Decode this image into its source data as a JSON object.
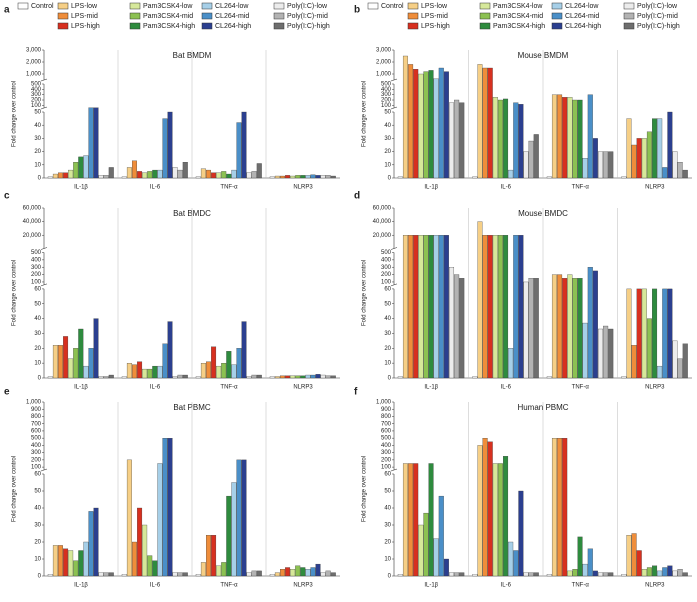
{
  "legend": [
    {
      "name": "Control",
      "color": "#ffffff"
    },
    {
      "name": "LPS-low",
      "color": "#f6cf86"
    },
    {
      "name": "LPS-mid",
      "color": "#ef8d3a"
    },
    {
      "name": "LPS-high",
      "color": "#d7301f"
    },
    {
      "name": "Pam3CSK4-low",
      "color": "#d6e89a"
    },
    {
      "name": "Pam3CSK4-mid",
      "color": "#8cc152"
    },
    {
      "name": "Pam3CSK4-high",
      "color": "#2e8b3e"
    },
    {
      "name": "CL264-low",
      "color": "#a6cfe8"
    },
    {
      "name": "CL264-mid",
      "color": "#4a8fc8"
    },
    {
      "name": "CL264-high",
      "color": "#2b3f8f"
    },
    {
      "name": "Poly(I:C)-low",
      "color": "#ececec"
    },
    {
      "name": "Poly(I:C)-mid",
      "color": "#b3b3b3"
    },
    {
      "name": "Poly(I:C)-high",
      "color": "#6e6e6e"
    }
  ],
  "chart_data": [
    {
      "type": "bar",
      "label": "a",
      "title": "Bat BMDM",
      "y_label": "Fold change over control",
      "legend": true,
      "categories": [
        "IL-1β",
        "IL-6",
        "TNF-α",
        "NLRP3"
      ],
      "segments": [
        {
          "ylim": [
            0,
            50
          ],
          "yticks": [
            0,
            10,
            20,
            30,
            40,
            50
          ]
        },
        {
          "ylim": [
            50,
            500
          ],
          "yticks": [
            100,
            200,
            300,
            400,
            500
          ]
        },
        {
          "ylim": [
            500,
            3000
          ],
          "yticks": [
            {
              "value": 1000,
              "label": "1,000"
            },
            {
              "value": 2000,
              "label": "2,000"
            },
            {
              "value": 3000,
              "label": "3,000"
            }
          ]
        }
      ],
      "values": [
        [
          1,
          3,
          4,
          4,
          6,
          12,
          16,
          17,
          55,
          55,
          2,
          2,
          8
        ],
        [
          1,
          8,
          13,
          5,
          4,
          5,
          6,
          6,
          45,
          50,
          8,
          6,
          12
        ],
        [
          1,
          7,
          6,
          4,
          4,
          5,
          3,
          6,
          42,
          50,
          4,
          5,
          11
        ],
        [
          1,
          1.5,
          1.5,
          2,
          1.5,
          2,
          2,
          2,
          2.5,
          2,
          2,
          2,
          1.5
        ]
      ]
    },
    {
      "type": "bar",
      "label": "b",
      "title": "Mouse BMDM",
      "y_label": "Fold change over control",
      "legend": true,
      "categories": [
        "IL-1β",
        "IL-6",
        "TNF-α",
        "NLRP3"
      ],
      "segments": [
        {
          "ylim": [
            0,
            50
          ],
          "yticks": [
            0,
            10,
            20,
            30,
            40,
            50
          ]
        },
        {
          "ylim": [
            50,
            500
          ],
          "yticks": [
            100,
            200,
            300,
            400,
            500
          ]
        },
        {
          "ylim": [
            500,
            3000
          ],
          "yticks": [
            {
              "value": 1000,
              "label": "1,000"
            },
            {
              "value": 2000,
              "label": "2,000"
            },
            {
              "value": 3000,
              "label": "3,000"
            }
          ]
        }
      ],
      "values": [
        [
          1,
          2500,
          1800,
          1400,
          1000,
          1200,
          1300,
          600,
          1500,
          1200,
          150,
          200,
          150
        ],
        [
          1,
          1800,
          1500,
          1500,
          250,
          200,
          220,
          6,
          150,
          120,
          20,
          28,
          33
        ],
        [
          1,
          300,
          300,
          250,
          250,
          200,
          200,
          15,
          300,
          30,
          20,
          20,
          20
        ],
        [
          1,
          45,
          25,
          30,
          30,
          35,
          45,
          45,
          8,
          50,
          20,
          12,
          6
        ]
      ]
    },
    {
      "type": "bar",
      "label": "c",
      "title": "Bat BMDC",
      "y_label": "Fold change over control",
      "categories": [
        "IL-1β",
        "IL-6",
        "TNF-α",
        "NLRP3"
      ],
      "segments": [
        {
          "ylim": [
            0,
            60
          ],
          "yticks": [
            0,
            10,
            20,
            30,
            40,
            50,
            60
          ]
        },
        {
          "ylim": [
            60,
            500
          ],
          "yticks": [
            100,
            200,
            300,
            400,
            500
          ]
        },
        {
          "ylim": [
            500,
            60000
          ],
          "yticks": [
            {
              "value": 20000,
              "label": "20,000"
            },
            {
              "value": 40000,
              "label": "40,000"
            },
            {
              "value": 60000,
              "label": "60,000"
            }
          ]
        }
      ],
      "values": [
        [
          1,
          22,
          22,
          28,
          13,
          20,
          33,
          8,
          20,
          40,
          1,
          1,
          2
        ],
        [
          1,
          10,
          9,
          11,
          6,
          6,
          8,
          8,
          23,
          38,
          1,
          2,
          2
        ],
        [
          1,
          10,
          11,
          21,
          8,
          10,
          18,
          9,
          20,
          38,
          1,
          2,
          2
        ],
        [
          1,
          1,
          1.5,
          1.5,
          1.5,
          1.5,
          1.5,
          2,
          2,
          2.5,
          2,
          1.5,
          1.5
        ]
      ]
    },
    {
      "type": "bar",
      "label": "d",
      "title": "Mouse BMDC",
      "y_label": "Fold change over control",
      "categories": [
        "IL-1β",
        "IL-6",
        "TNF-α",
        "NLRP3"
      ],
      "segments": [
        {
          "ylim": [
            0,
            60
          ],
          "yticks": [
            0,
            10,
            20,
            30,
            40,
            50,
            60
          ]
        },
        {
          "ylim": [
            60,
            500
          ],
          "yticks": [
            100,
            200,
            300,
            400,
            500
          ]
        },
        {
          "ylim": [
            500,
            60000
          ],
          "yticks": [
            {
              "value": 20000,
              "label": "20,000"
            },
            {
              "value": 40000,
              "label": "40,000"
            },
            {
              "value": 60000,
              "label": "60,000"
            }
          ]
        }
      ],
      "values": [
        [
          1,
          20000,
          20000,
          20000,
          20000,
          20000,
          20000,
          20000,
          20000,
          20000,
          300,
          200,
          150
        ],
        [
          1,
          40000,
          20000,
          20000,
          20000,
          20000,
          20000,
          20,
          20000,
          20000,
          100,
          150,
          150
        ],
        [
          1,
          200,
          200,
          150,
          200,
          150,
          150,
          37,
          300,
          250,
          33,
          35,
          33
        ],
        [
          1,
          60,
          22,
          60,
          60,
          40,
          60,
          8,
          60,
          60,
          25,
          13,
          23
        ]
      ]
    },
    {
      "type": "bar",
      "label": "e",
      "title": "Bat PBMC",
      "y_label": "Fold change over control",
      "categories": [
        "IL-1β",
        "IL-6",
        "TNF-α",
        "NLRP3"
      ],
      "segments": [
        {
          "ylim": [
            0,
            60
          ],
          "yticks": [
            0,
            10,
            20,
            30,
            40,
            50,
            60
          ]
        },
        {
          "ylim": [
            60,
            1000
          ],
          "yticks": [
            100,
            200,
            300,
            400,
            500,
            600,
            700,
            800,
            900,
            {
              "value": 1000,
              "label": "1,000"
            }
          ]
        }
      ],
      "values": [
        [
          1,
          18,
          18,
          16,
          15,
          9,
          15,
          20,
          38,
          40,
          2,
          2,
          2
        ],
        [
          1,
          200,
          20,
          40,
          30,
          12,
          9,
          150,
          500,
          500,
          2,
          2,
          2
        ],
        [
          1,
          8,
          24,
          24,
          6,
          8,
          47,
          55,
          200,
          200,
          2,
          3,
          3
        ],
        [
          1,
          2,
          4,
          5,
          4,
          6,
          5,
          4,
          5,
          7,
          2,
          3,
          2
        ]
      ]
    },
    {
      "type": "bar",
      "label": "f",
      "title": "Human PBMC",
      "y_label": "Fold change over control",
      "categories": [
        "IL-1β",
        "IL-6",
        "TNF-α",
        "NLRP3"
      ],
      "segments": [
        {
          "ylim": [
            0,
            60
          ],
          "yticks": [
            0,
            10,
            20,
            30,
            40,
            50,
            60
          ]
        },
        {
          "ylim": [
            60,
            1000
          ],
          "yticks": [
            100,
            200,
            300,
            400,
            500,
            600,
            700,
            800,
            900,
            {
              "value": 1000,
              "label": "1,000"
            }
          ]
        }
      ],
      "values": [
        [
          1,
          150,
          150,
          150,
          30,
          37,
          150,
          22,
          47,
          10,
          2,
          2,
          2
        ],
        [
          1,
          400,
          500,
          450,
          150,
          150,
          250,
          20,
          15,
          50,
          2,
          2,
          2
        ],
        [
          1,
          500,
          500,
          500,
          3,
          4,
          23,
          7,
          16,
          3,
          2,
          2,
          2
        ],
        [
          1,
          24,
          25,
          15,
          4,
          5,
          6,
          3,
          5,
          6,
          3,
          4,
          2
        ]
      ]
    }
  ]
}
